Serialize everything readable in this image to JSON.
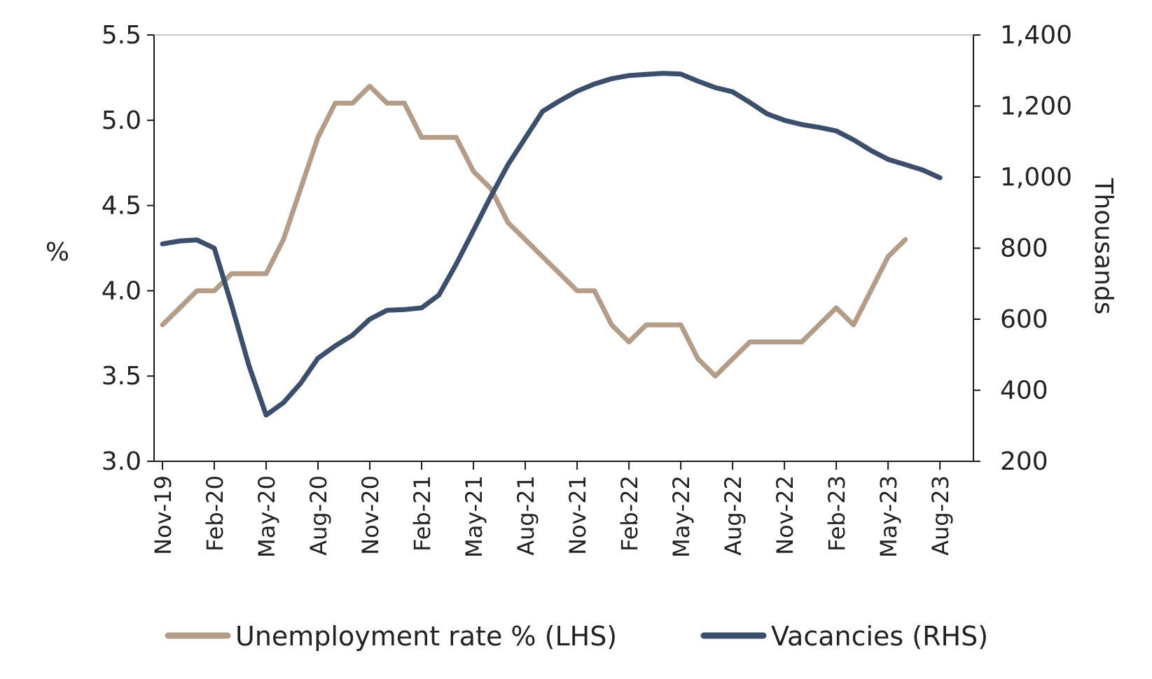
{
  "chart_data": {
    "type": "line",
    "title": "",
    "x": [
      "Nov-19",
      "Dec-19",
      "Jan-20",
      "Feb-20",
      "Mar-20",
      "Apr-20",
      "May-20",
      "Jun-20",
      "Jul-20",
      "Aug-20",
      "Sep-20",
      "Oct-20",
      "Nov-20",
      "Dec-20",
      "Jan-21",
      "Feb-21",
      "Mar-21",
      "Apr-21",
      "May-21",
      "Jun-21",
      "Jul-21",
      "Aug-21",
      "Sep-21",
      "Oct-21",
      "Nov-21",
      "Dec-21",
      "Jan-22",
      "Feb-22",
      "Mar-22",
      "Apr-22",
      "May-22",
      "Jun-22",
      "Jul-22",
      "Aug-22",
      "Sep-22",
      "Oct-22",
      "Nov-22",
      "Dec-22",
      "Jan-23",
      "Feb-23",
      "Mar-23",
      "Apr-23",
      "May-23",
      "Jun-23",
      "Jul-23",
      "Aug-23"
    ],
    "x_tick_labels": [
      "Nov-19",
      "Feb-20",
      "May-20",
      "Aug-20",
      "Nov-20",
      "Feb-21",
      "May-21",
      "Aug-21",
      "Nov-21",
      "Feb-22",
      "May-22",
      "Aug-22",
      "Nov-22",
      "Feb-23",
      "May-23",
      "Aug-23"
    ],
    "left_axis": {
      "label": "%",
      "ylim": [
        3.0,
        5.5
      ],
      "ticks": [
        "3.0",
        "3.5",
        "4.0",
        "4.5",
        "5.0",
        "5.5"
      ],
      "tick_values": [
        3.0,
        3.5,
        4.0,
        4.5,
        5.0,
        5.5
      ]
    },
    "right_axis": {
      "label": "Thousands",
      "ylim": [
        200,
        1400
      ],
      "ticks": [
        "200",
        "400",
        "600",
        "800",
        "1,000",
        "1,200",
        "1,400"
      ],
      "tick_values": [
        200,
        400,
        600,
        800,
        1000,
        1200,
        1400
      ]
    },
    "series": [
      {
        "name": "Unemployment rate % (LHS)",
        "axis": "left",
        "color": "#b49d88",
        "values": [
          3.8,
          3.9,
          4.0,
          4.0,
          4.1,
          4.1,
          4.1,
          4.3,
          4.6,
          4.9,
          5.1,
          5.1,
          5.2,
          5.1,
          5.1,
          4.9,
          4.9,
          4.9,
          4.7,
          4.6,
          4.4,
          4.3,
          4.2,
          4.1,
          4.0,
          4.0,
          3.8,
          3.7,
          3.8,
          3.8,
          3.8,
          3.6,
          3.5,
          3.6,
          3.7,
          3.7,
          3.7,
          3.7,
          3.8,
          3.9,
          3.8,
          4.0,
          4.2,
          4.3,
          null,
          null
        ]
      },
      {
        "name": "Vacancies (RHS)",
        "axis": "right",
        "color": "#3b4e6b",
        "values": [
          812,
          820,
          823,
          800,
          640,
          470,
          330,
          365,
          420,
          490,
          525,
          555,
          600,
          625,
          627,
          632,
          668,
          755,
          850,
          945,
          1035,
          1110,
          1185,
          1215,
          1242,
          1262,
          1277,
          1286,
          1289,
          1292,
          1290,
          1270,
          1252,
          1240,
          1210,
          1178,
          1160,
          1148,
          1140,
          1130,
          1105,
          1075,
          1050,
          1035,
          1020,
          998
        ]
      }
    ],
    "legend": {
      "position": "bottom",
      "entries": [
        "Unemployment rate % (LHS)",
        "Vacancies (RHS)"
      ]
    },
    "grid": false
  }
}
